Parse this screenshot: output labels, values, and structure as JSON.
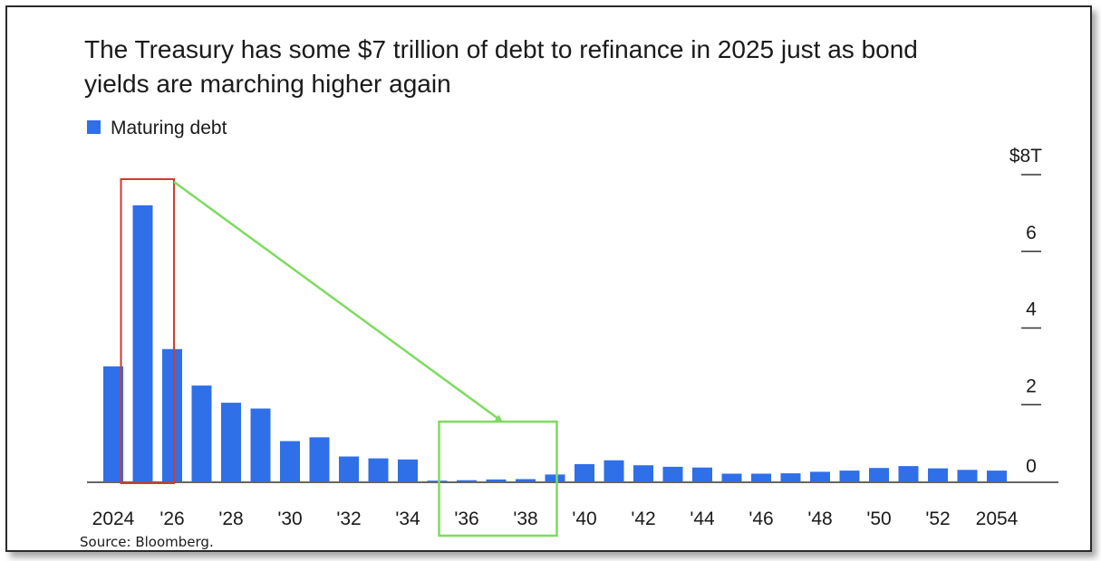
{
  "chart_data": {
    "type": "bar",
    "title_lines": [
      "The Treasury has some $7 trillion of debt to refinance in 2025 just as bond",
      "yields are marching higher again"
    ],
    "legend": [
      {
        "label": "Maturing debt",
        "color": "#2f6fe8"
      }
    ],
    "series": [
      {
        "name": "Maturing debt",
        "color": "#2f6fe8"
      }
    ],
    "x": [
      2024,
      2025,
      2026,
      2027,
      2028,
      2029,
      2030,
      2031,
      2032,
      2033,
      2034,
      2035,
      2036,
      2037,
      2038,
      2039,
      2040,
      2041,
      2042,
      2043,
      2044,
      2045,
      2046,
      2047,
      2048,
      2049,
      2050,
      2051,
      2052,
      2053,
      2054
    ],
    "values": [
      3.0,
      7.2,
      3.45,
      2.5,
      2.05,
      1.9,
      1.05,
      1.15,
      0.65,
      0.6,
      0.57,
      0.02,
      0.03,
      0.05,
      0.06,
      0.18,
      0.45,
      0.55,
      0.42,
      0.38,
      0.36,
      0.2,
      0.2,
      0.21,
      0.25,
      0.28,
      0.35,
      0.4,
      0.34,
      0.3,
      0.28
    ],
    "x_tick_labels": [
      {
        "year": 2024,
        "label": "2024"
      },
      {
        "year": 2026,
        "label": "'26"
      },
      {
        "year": 2028,
        "label": "'28"
      },
      {
        "year": 2030,
        "label": "'30"
      },
      {
        "year": 2032,
        "label": "'32"
      },
      {
        "year": 2034,
        "label": "'34"
      },
      {
        "year": 2036,
        "label": "'36"
      },
      {
        "year": 2038,
        "label": "'38"
      },
      {
        "year": 2040,
        "label": "'40"
      },
      {
        "year": 2042,
        "label": "'42"
      },
      {
        "year": 2044,
        "label": "'44"
      },
      {
        "year": 2046,
        "label": "'46"
      },
      {
        "year": 2048,
        "label": "'48"
      },
      {
        "year": 2050,
        "label": "'50"
      },
      {
        "year": 2052,
        "label": "'52"
      },
      {
        "year": 2054,
        "label": "2054"
      }
    ],
    "y_ticks": [
      {
        "value": 0,
        "label": "0"
      },
      {
        "value": 2,
        "label": "2"
      },
      {
        "value": 4,
        "label": "4"
      },
      {
        "value": 6,
        "label": "6"
      },
      {
        "value": 8,
        "label": "$8T"
      }
    ],
    "ylim": [
      0,
      8
    ],
    "grid": false,
    "y_axis_side": "right",
    "legend_position": "top-left",
    "source": "Source: Bloomberg.",
    "annotations": {
      "highlight_2025": {
        "from_year": 2024.6,
        "to_year": 2026.4,
        "color": "#d63a2a"
      },
      "highlight_2036_2038": {
        "from_year": 2035.4,
        "to_year": 2039.4,
        "color": "#7ddc5f"
      },
      "arrow_color": "#7ddc5f"
    }
  }
}
